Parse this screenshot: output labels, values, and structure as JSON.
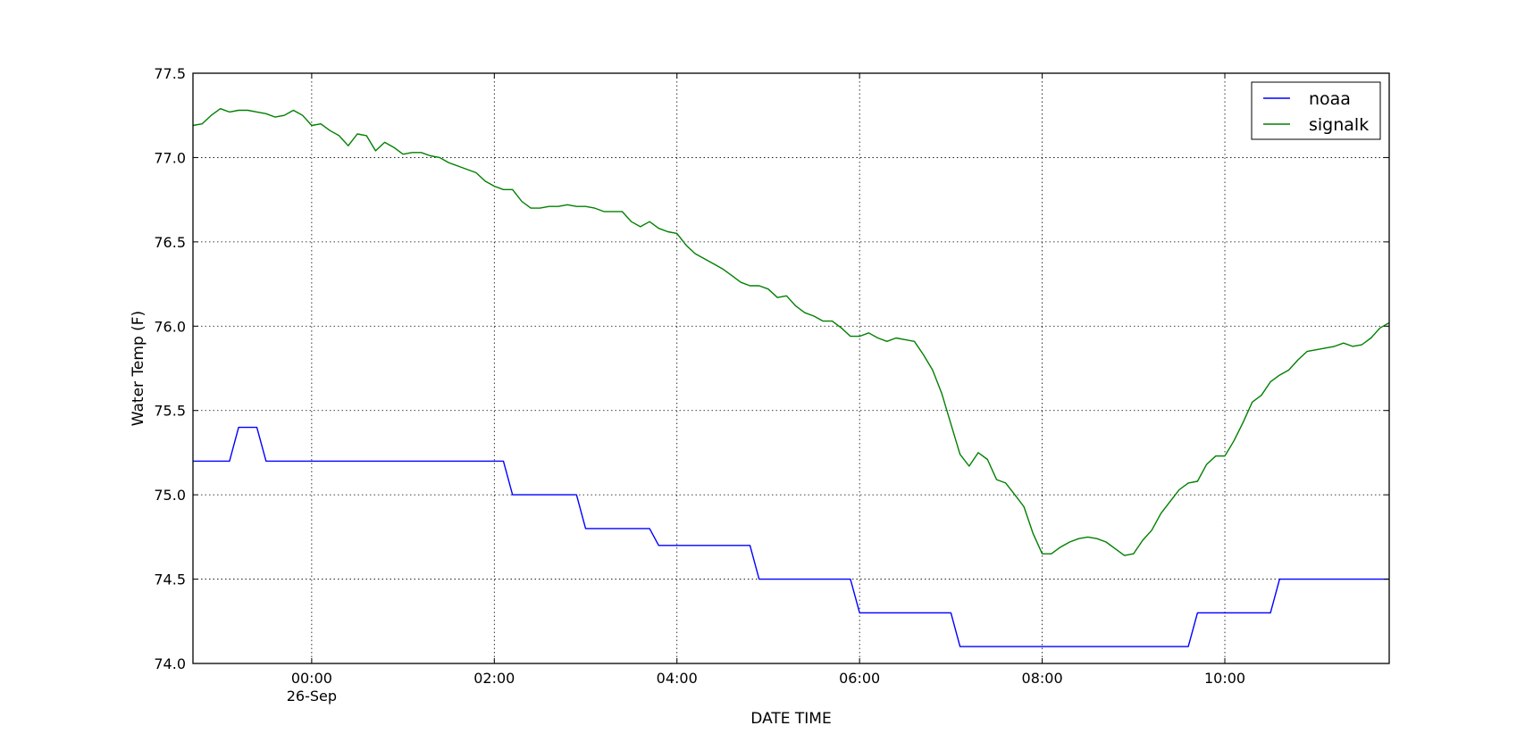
{
  "chart_data": {
    "type": "line",
    "title": "",
    "xlabel": "DATE TIME",
    "ylabel": "Water Temp (F)",
    "x_unit": "hours relative to 00:00 on 26-Sep",
    "xlim": [
      -1.3,
      11.8
    ],
    "ylim": [
      74.0,
      77.5
    ],
    "grid": true,
    "legend_position": "top-right",
    "x_ticks": [
      {
        "value": 0,
        "label": "00:00",
        "sublabel": "26-Sep"
      },
      {
        "value": 2,
        "label": "02:00",
        "sublabel": ""
      },
      {
        "value": 4,
        "label": "04:00",
        "sublabel": ""
      },
      {
        "value": 6,
        "label": "06:00",
        "sublabel": ""
      },
      {
        "value": 8,
        "label": "08:00",
        "sublabel": ""
      },
      {
        "value": 10,
        "label": "10:00",
        "sublabel": ""
      }
    ],
    "y_ticks": [
      {
        "value": 74.0,
        "label": "74.0"
      },
      {
        "value": 74.5,
        "label": "74.5"
      },
      {
        "value": 75.0,
        "label": "75.0"
      },
      {
        "value": 75.5,
        "label": "75.5"
      },
      {
        "value": 76.0,
        "label": "76.0"
      },
      {
        "value": 76.5,
        "label": "76.5"
      },
      {
        "value": 77.0,
        "label": "77.0"
      },
      {
        "value": 77.5,
        "label": "77.5"
      }
    ],
    "series": [
      {
        "name": "noaa",
        "color": "#0000ff",
        "points": [
          [
            -1.3,
            75.2
          ],
          [
            -0.9,
            75.2
          ],
          [
            -0.8,
            75.4
          ],
          [
            -0.6,
            75.4
          ],
          [
            -0.5,
            75.2
          ],
          [
            2.1,
            75.2
          ],
          [
            2.2,
            75.0
          ],
          [
            2.9,
            75.0
          ],
          [
            3.0,
            74.8
          ],
          [
            3.7,
            74.8
          ],
          [
            3.8,
            74.7
          ],
          [
            4.8,
            74.7
          ],
          [
            4.9,
            74.5
          ],
          [
            5.9,
            74.5
          ],
          [
            6.0,
            74.3
          ],
          [
            7.0,
            74.3
          ],
          [
            7.1,
            74.1
          ],
          [
            9.6,
            74.1
          ],
          [
            9.7,
            74.3
          ],
          [
            10.5,
            74.3
          ],
          [
            10.6,
            74.5
          ],
          [
            11.8,
            74.5
          ]
        ]
      },
      {
        "name": "signalk",
        "color": "#008000",
        "points": [
          [
            -1.3,
            77.19
          ],
          [
            -1.2,
            77.2
          ],
          [
            -1.1,
            77.25
          ],
          [
            -1.0,
            77.29
          ],
          [
            -0.9,
            77.27
          ],
          [
            -0.8,
            77.28
          ],
          [
            -0.7,
            77.28
          ],
          [
            -0.6,
            77.27
          ],
          [
            -0.5,
            77.26
          ],
          [
            -0.4,
            77.24
          ],
          [
            -0.3,
            77.25
          ],
          [
            -0.2,
            77.28
          ],
          [
            -0.1,
            77.25
          ],
          [
            0.0,
            77.19
          ],
          [
            0.1,
            77.2
          ],
          [
            0.2,
            77.16
          ],
          [
            0.3,
            77.13
          ],
          [
            0.4,
            77.07
          ],
          [
            0.5,
            77.14
          ],
          [
            0.6,
            77.13
          ],
          [
            0.7,
            77.04
          ],
          [
            0.8,
            77.09
          ],
          [
            0.9,
            77.06
          ],
          [
            1.0,
            77.02
          ],
          [
            1.1,
            77.03
          ],
          [
            1.2,
            77.03
          ],
          [
            1.3,
            77.01
          ],
          [
            1.4,
            77.0
          ],
          [
            1.5,
            76.97
          ],
          [
            1.6,
            76.95
          ],
          [
            1.7,
            76.93
          ],
          [
            1.8,
            76.91
          ],
          [
            1.9,
            76.86
          ],
          [
            2.0,
            76.83
          ],
          [
            2.1,
            76.81
          ],
          [
            2.2,
            76.81
          ],
          [
            2.3,
            76.74
          ],
          [
            2.4,
            76.7
          ],
          [
            2.5,
            76.7
          ],
          [
            2.6,
            76.71
          ],
          [
            2.7,
            76.71
          ],
          [
            2.8,
            76.72
          ],
          [
            2.9,
            76.71
          ],
          [
            3.0,
            76.71
          ],
          [
            3.1,
            76.7
          ],
          [
            3.2,
            76.68
          ],
          [
            3.3,
            76.68
          ],
          [
            3.4,
            76.68
          ],
          [
            3.5,
            76.62
          ],
          [
            3.6,
            76.59
          ],
          [
            3.7,
            76.62
          ],
          [
            3.8,
            76.58
          ],
          [
            3.9,
            76.56
          ],
          [
            4.0,
            76.55
          ],
          [
            4.1,
            76.48
          ],
          [
            4.2,
            76.43
          ],
          [
            4.3,
            76.4
          ],
          [
            4.4,
            76.37
          ],
          [
            4.5,
            76.34
          ],
          [
            4.6,
            76.3
          ],
          [
            4.7,
            76.26
          ],
          [
            4.8,
            76.24
          ],
          [
            4.9,
            76.24
          ],
          [
            5.0,
            76.22
          ],
          [
            5.1,
            76.17
          ],
          [
            5.2,
            76.18
          ],
          [
            5.3,
            76.12
          ],
          [
            5.4,
            76.08
          ],
          [
            5.5,
            76.06
          ],
          [
            5.6,
            76.03
          ],
          [
            5.7,
            76.03
          ],
          [
            5.8,
            75.99
          ],
          [
            5.9,
            75.94
          ],
          [
            6.0,
            75.94
          ],
          [
            6.1,
            75.96
          ],
          [
            6.2,
            75.93
          ],
          [
            6.3,
            75.91
          ],
          [
            6.4,
            75.93
          ],
          [
            6.5,
            75.92
          ],
          [
            6.6,
            75.91
          ],
          [
            6.7,
            75.83
          ],
          [
            6.8,
            75.74
          ],
          [
            6.9,
            75.6
          ],
          [
            7.0,
            75.42
          ],
          [
            7.1,
            75.24
          ],
          [
            7.2,
            75.17
          ],
          [
            7.3,
            75.25
          ],
          [
            7.4,
            75.21
          ],
          [
            7.5,
            75.09
          ],
          [
            7.6,
            75.07
          ],
          [
            7.7,
            75.0
          ],
          [
            7.8,
            74.93
          ],
          [
            7.9,
            74.77
          ],
          [
            8.0,
            74.65
          ],
          [
            8.1,
            74.65
          ],
          [
            8.2,
            74.69
          ],
          [
            8.3,
            74.72
          ],
          [
            8.4,
            74.74
          ],
          [
            8.5,
            74.75
          ],
          [
            8.6,
            74.74
          ],
          [
            8.7,
            74.72
          ],
          [
            8.8,
            74.68
          ],
          [
            8.9,
            74.64
          ],
          [
            9.0,
            74.65
          ],
          [
            9.1,
            74.73
          ],
          [
            9.2,
            74.79
          ],
          [
            9.3,
            74.89
          ],
          [
            9.4,
            74.96
          ],
          [
            9.5,
            75.03
          ],
          [
            9.6,
            75.07
          ],
          [
            9.7,
            75.08
          ],
          [
            9.8,
            75.18
          ],
          [
            9.9,
            75.23
          ],
          [
            10.0,
            75.23
          ],
          [
            10.1,
            75.32
          ],
          [
            10.2,
            75.43
          ],
          [
            10.3,
            75.55
          ],
          [
            10.4,
            75.59
          ],
          [
            10.5,
            75.67
          ],
          [
            10.6,
            75.71
          ],
          [
            10.7,
            75.74
          ],
          [
            10.8,
            75.8
          ],
          [
            10.9,
            75.85
          ],
          [
            11.0,
            75.86
          ],
          [
            11.1,
            75.87
          ],
          [
            11.2,
            75.88
          ],
          [
            11.3,
            75.9
          ],
          [
            11.4,
            75.88
          ],
          [
            11.5,
            75.89
          ],
          [
            11.6,
            75.93
          ],
          [
            11.7,
            75.99
          ],
          [
            11.8,
            76.02
          ]
        ]
      }
    ]
  }
}
